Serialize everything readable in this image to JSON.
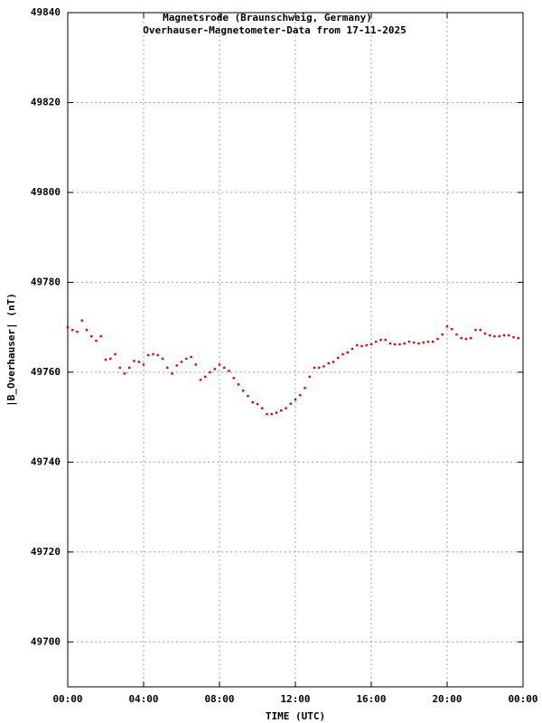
{
  "chart_data": {
    "type": "scatter",
    "title": "Magnetsrode (Braunschweig, Germany)",
    "subtitle": "Overhauser-Magnetometer-Data from 17-11-2025",
    "x_label": "TIME (UTC)",
    "y_label": "|B_Overhauser| (nT)",
    "grid": true,
    "xlim": [
      0,
      24
    ],
    "xticks": [
      {
        "value": 0,
        "label": "00:00"
      },
      {
        "value": 4,
        "label": "04:00"
      },
      {
        "value": 8,
        "label": "08:00"
      },
      {
        "value": 12,
        "label": "12:00"
      },
      {
        "value": 16,
        "label": "16:00"
      },
      {
        "value": 20,
        "label": "20:00"
      },
      {
        "value": 24,
        "label": "00:00"
      }
    ],
    "ylim": [
      49690,
      49840
    ],
    "yticks": [
      49700,
      49720,
      49740,
      49760,
      49780,
      49800,
      49820,
      49840
    ],
    "series": [
      {
        "color": "#e00000",
        "x": [
          0,
          0.25,
          0.5,
          0.75,
          1,
          1.25,
          1.5,
          1.75,
          2,
          2.25,
          2.5,
          2.75,
          3,
          3.25,
          3.5,
          3.75,
          4,
          4.25,
          4.5,
          4.75,
          5,
          5.25,
          5.5,
          5.75,
          6,
          6.25,
          6.5,
          6.75,
          7,
          7.25,
          7.5,
          7.75,
          8,
          8.25,
          8.5,
          8.75,
          9,
          9.25,
          9.5,
          9.75,
          10,
          10.25,
          10.5,
          10.75,
          11,
          11.25,
          11.5,
          11.75,
          12,
          12.25,
          12.5,
          12.75,
          13,
          13.25,
          13.5,
          13.75,
          14,
          14.25,
          14.5,
          14.75,
          15,
          15.25,
          15.5,
          15.75,
          16,
          16.25,
          16.5,
          16.75,
          17,
          17.25,
          17.5,
          17.75,
          18,
          18.25,
          18.5,
          18.75,
          19,
          19.25,
          19.5,
          19.75,
          20,
          20.25,
          20.5,
          20.75,
          21,
          21.25,
          21.5,
          21.75,
          22,
          22.25,
          22.5,
          22.75,
          23,
          23.25,
          23.5,
          23.75
        ],
        "values": [
          49770,
          49769.4,
          49769,
          49771.5,
          49769.4,
          49768,
          49767,
          49768,
          49762.8,
          49763,
          49764,
          49761,
          49759.7,
          49761,
          49762.5,
          49762.3,
          49761.7,
          49763.8,
          49764,
          49763.8,
          49763,
          49761,
          49759.7,
          49761.5,
          49762.3,
          49763,
          49763.4,
          49761.7,
          49758.3,
          49759,
          49760,
          49760.7,
          49761.7,
          49761,
          49760.3,
          49758.7,
          49757.3,
          49755.9,
          49754.7,
          49753.3,
          49752.9,
          49752,
          49750.7,
          49750.7,
          49751,
          49751.5,
          49752,
          49753,
          49753.9,
          49754.9,
          49756.5,
          49759,
          49761,
          49761,
          49761.3,
          49762,
          49762.3,
          49763.2,
          49764,
          49764.4,
          49765.2,
          49766,
          49765.8,
          49766,
          49766.2,
          49766.8,
          49767.2,
          49767.2,
          49766.4,
          49766.2,
          49766.2,
          49766.4,
          49766.8,
          49766.6,
          49766.4,
          49766.6,
          49766.8,
          49766.8,
          49767.4,
          49768.4,
          49770.2,
          49769.6,
          49768.4,
          49767.6,
          49767.4,
          49767.6,
          49769.4,
          49769.4,
          49768.6,
          49768.2,
          49768,
          49768,
          49768.2,
          49768.2,
          49767.8,
          49767.6
        ]
      }
    ]
  }
}
